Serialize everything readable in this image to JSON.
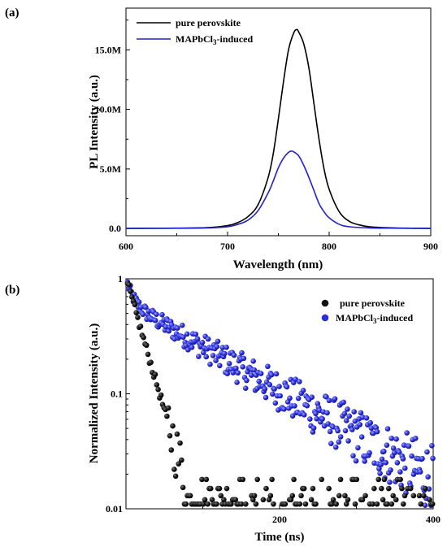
{
  "chart_data": [
    {
      "type": "line",
      "panel_label": "(a)",
      "xlabel": "Wavelength (nm)",
      "ylabel": "PL Intensity (a.u.)",
      "xlim": [
        600,
        900
      ],
      "ylim": [
        -0.6,
        18.5
      ],
      "x_ticks": [
        600,
        700,
        800,
        900
      ],
      "x_tick_labels": [
        "600",
        "700",
        "800",
        "900"
      ],
      "y_ticks": [
        0,
        5,
        10,
        15
      ],
      "y_tick_labels": [
        "0.0",
        "5.0M",
        "10.0M",
        "15.0M"
      ],
      "y_unit_note": "millions",
      "legend_position": "top-left",
      "series": [
        {
          "name": "pure perovskite",
          "color": "#000000",
          "x": [
            600,
            640,
            680,
            700,
            710,
            720,
            730,
            740,
            745,
            750,
            755,
            760,
            765,
            768,
            770,
            775,
            780,
            785,
            790,
            795,
            800,
            810,
            820,
            830,
            840,
            860,
            880,
            900
          ],
          "y": [
            0.02,
            0.03,
            0.08,
            0.25,
            0.5,
            1.0,
            2.0,
            4.3,
            6.3,
            9.2,
            12.3,
            15.0,
            16.4,
            16.7,
            16.5,
            15.5,
            13.5,
            10.5,
            7.5,
            5.0,
            3.3,
            1.4,
            0.6,
            0.3,
            0.15,
            0.06,
            0.03,
            0.02
          ]
        },
        {
          "name": "MAPbCl3-induced",
          "color": "#1f22c8",
          "x": [
            600,
            640,
            680,
            700,
            710,
            720,
            730,
            740,
            745,
            750,
            755,
            760,
            763,
            765,
            770,
            775,
            780,
            785,
            790,
            795,
            800,
            810,
            820,
            840,
            860,
            880,
            900
          ],
          "y": [
            0.01,
            0.02,
            0.05,
            0.15,
            0.35,
            0.7,
            1.5,
            3.0,
            4.0,
            5.1,
            5.9,
            6.4,
            6.5,
            6.45,
            6.1,
            5.3,
            4.3,
            3.2,
            2.1,
            1.4,
            0.9,
            0.35,
            0.15,
            0.05,
            0.03,
            0.02,
            0.01
          ]
        }
      ]
    },
    {
      "type": "scatter",
      "panel_label": "(b)",
      "xlabel": "Time (ns)",
      "ylabel": "Normalized Intensity (a.u.)",
      "xlim": [
        0,
        400
      ],
      "ylim": [
        0.01,
        1
      ],
      "y_scale": "log",
      "x_ticks": [
        200,
        400
      ],
      "x_tick_labels": [
        "200",
        "400"
      ],
      "y_ticks": [
        0.01,
        0.1,
        1
      ],
      "y_tick_labels": [
        "0.01",
        "0.1",
        "1"
      ],
      "legend_position": "top-right",
      "series": [
        {
          "name": "pure perovskite",
          "color": "#111111",
          "decay_model": {
            "tau_ns": 19,
            "noise_floor": 0.011,
            "points_every_ns": 1.9
          }
        },
        {
          "name": "MAPbCl3-induced",
          "color": "#2a2ed9",
          "decay_model": {
            "tau_ns": 113,
            "amplitude": 0.62,
            "fast_component": 0.38,
            "fast_tau_ns": 8,
            "points_every_ns": 1.25
          }
        }
      ]
    }
  ],
  "legend_a": {
    "item1": "pure perovskite",
    "item2_prefix": "MAPbCl",
    "item2_sub": "3",
    "item2_suffix": "-induced"
  },
  "legend_b": {
    "item1": "pure perovskite",
    "item2_prefix": "MAPbCl",
    "item2_sub": "3",
    "item2_suffix": "-induced"
  }
}
